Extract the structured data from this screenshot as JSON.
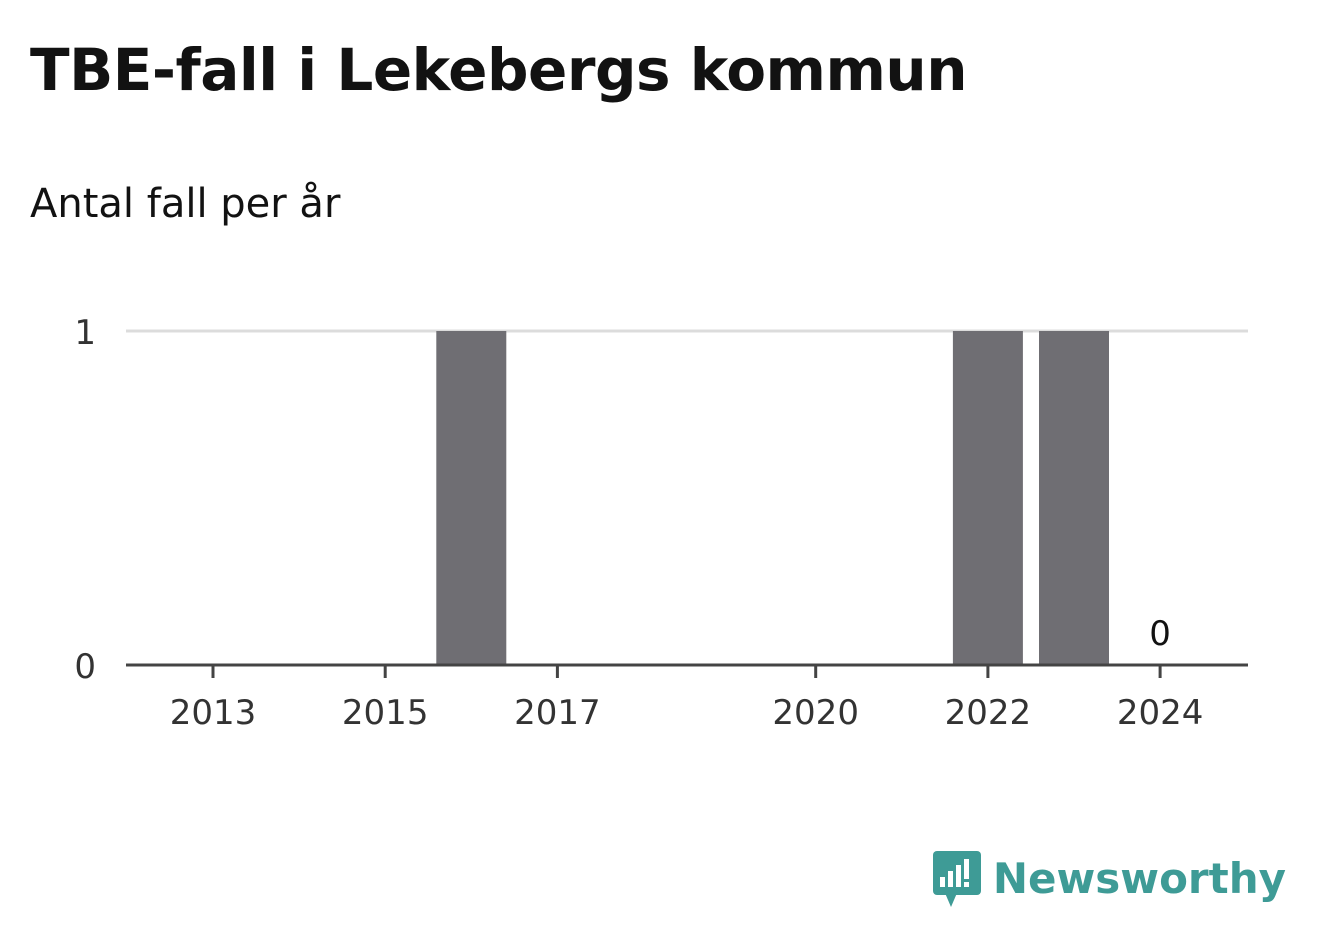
{
  "title": "TBE-fall i Lekebergs kommun",
  "subtitle": "Antal fall per år",
  "brand": {
    "name": "Newsworthy",
    "icon": "newsworthy-logo-icon",
    "color": "#3e9b96"
  },
  "chart_data": {
    "type": "bar",
    "categories": [
      "2013",
      "2014",
      "2015",
      "2016",
      "2017",
      "2018",
      "2019",
      "2020",
      "2021",
      "2022",
      "2023",
      "2024"
    ],
    "values": [
      0,
      0,
      0,
      1,
      0,
      0,
      0,
      0,
      0,
      1,
      1,
      0
    ],
    "x_tick_labels": [
      "2013",
      "2015",
      "2017",
      "2020",
      "2022",
      "2024"
    ],
    "y_ticks": [
      "0",
      "1"
    ],
    "ylim": [
      0,
      1
    ],
    "data_labels": [
      {
        "category": "2024",
        "text": "0"
      }
    ],
    "bar_color": "#6f6e73",
    "grid": true,
    "legend": "none"
  }
}
